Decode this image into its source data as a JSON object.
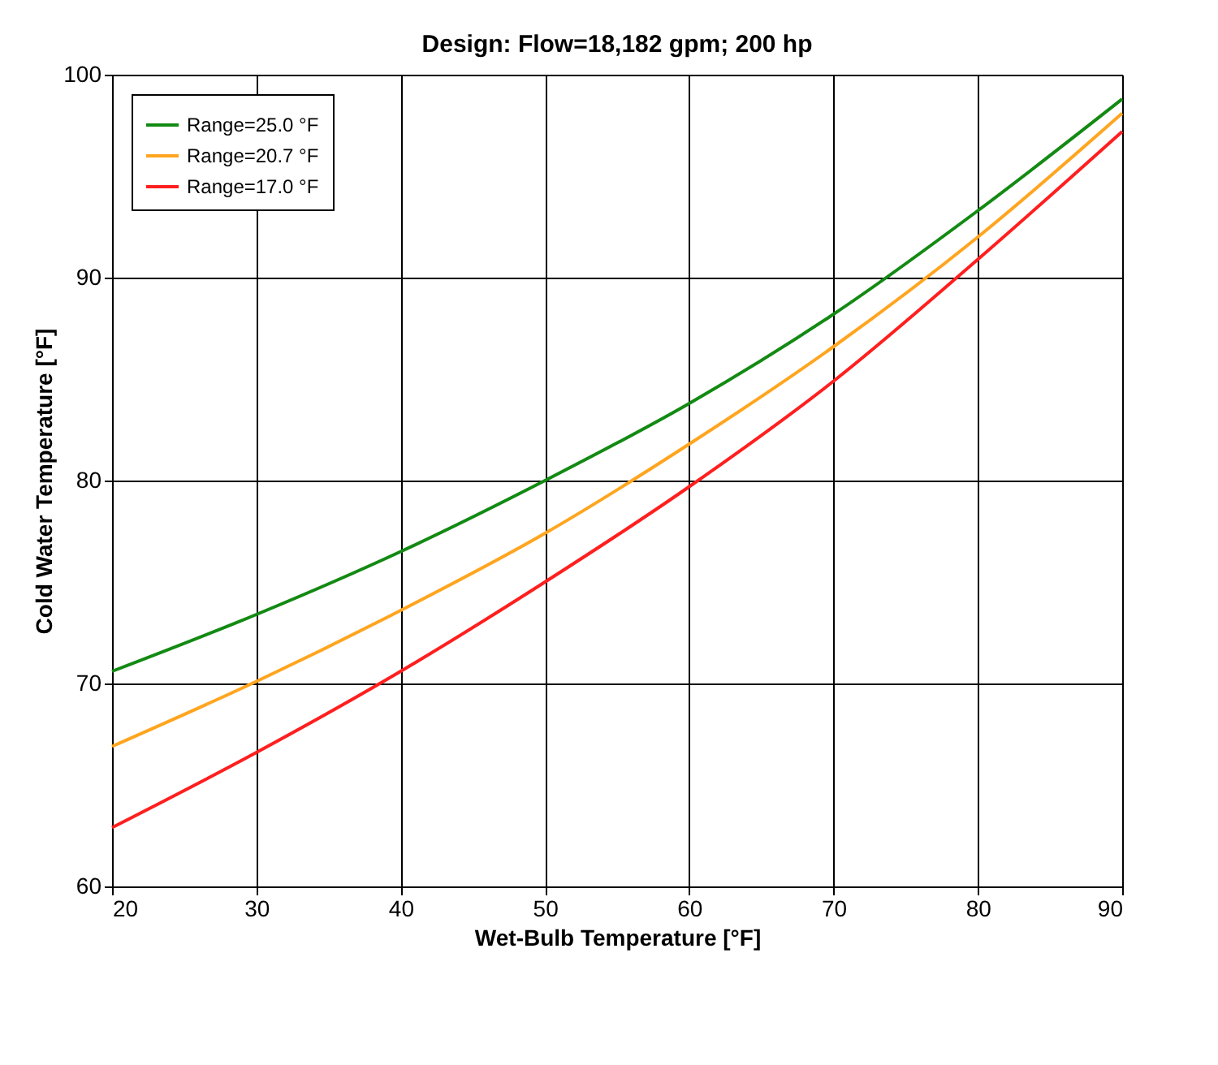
{
  "chart_data": {
    "type": "line",
    "title": "Design: Flow=18,182 gpm; 200 hp",
    "xlabel": "Wet-Bulb Temperature [°F]",
    "ylabel": "Cold Water Temperature [°F]",
    "x": [
      20,
      30,
      40,
      50,
      60,
      70,
      80,
      90
    ],
    "series": [
      {
        "name": "Range=25.0 °F",
        "color": "#138a13",
        "values": [
          70.6,
          73.4,
          76.5,
          80.0,
          83.8,
          88.2,
          93.3,
          98.8
        ]
      },
      {
        "name": "Range=20.7 °F",
        "color": "#ffa51f",
        "values": [
          66.9,
          70.1,
          73.6,
          77.4,
          81.8,
          86.6,
          92.0,
          98.1
        ]
      },
      {
        "name": "Range=17.0 °F",
        "color": "#ff1f1f",
        "values": [
          62.9,
          66.6,
          70.6,
          75.0,
          79.7,
          84.9,
          90.9,
          97.2
        ]
      }
    ],
    "xlim": [
      20,
      90
    ],
    "xticks": [
      20,
      30,
      40,
      50,
      60,
      70,
      80,
      90
    ],
    "ylim": [
      60,
      100
    ],
    "yticks": [
      60,
      70,
      80,
      90,
      100
    ],
    "grid": true,
    "legend": "top left",
    "marker": "none",
    "line_style": "solid"
  }
}
